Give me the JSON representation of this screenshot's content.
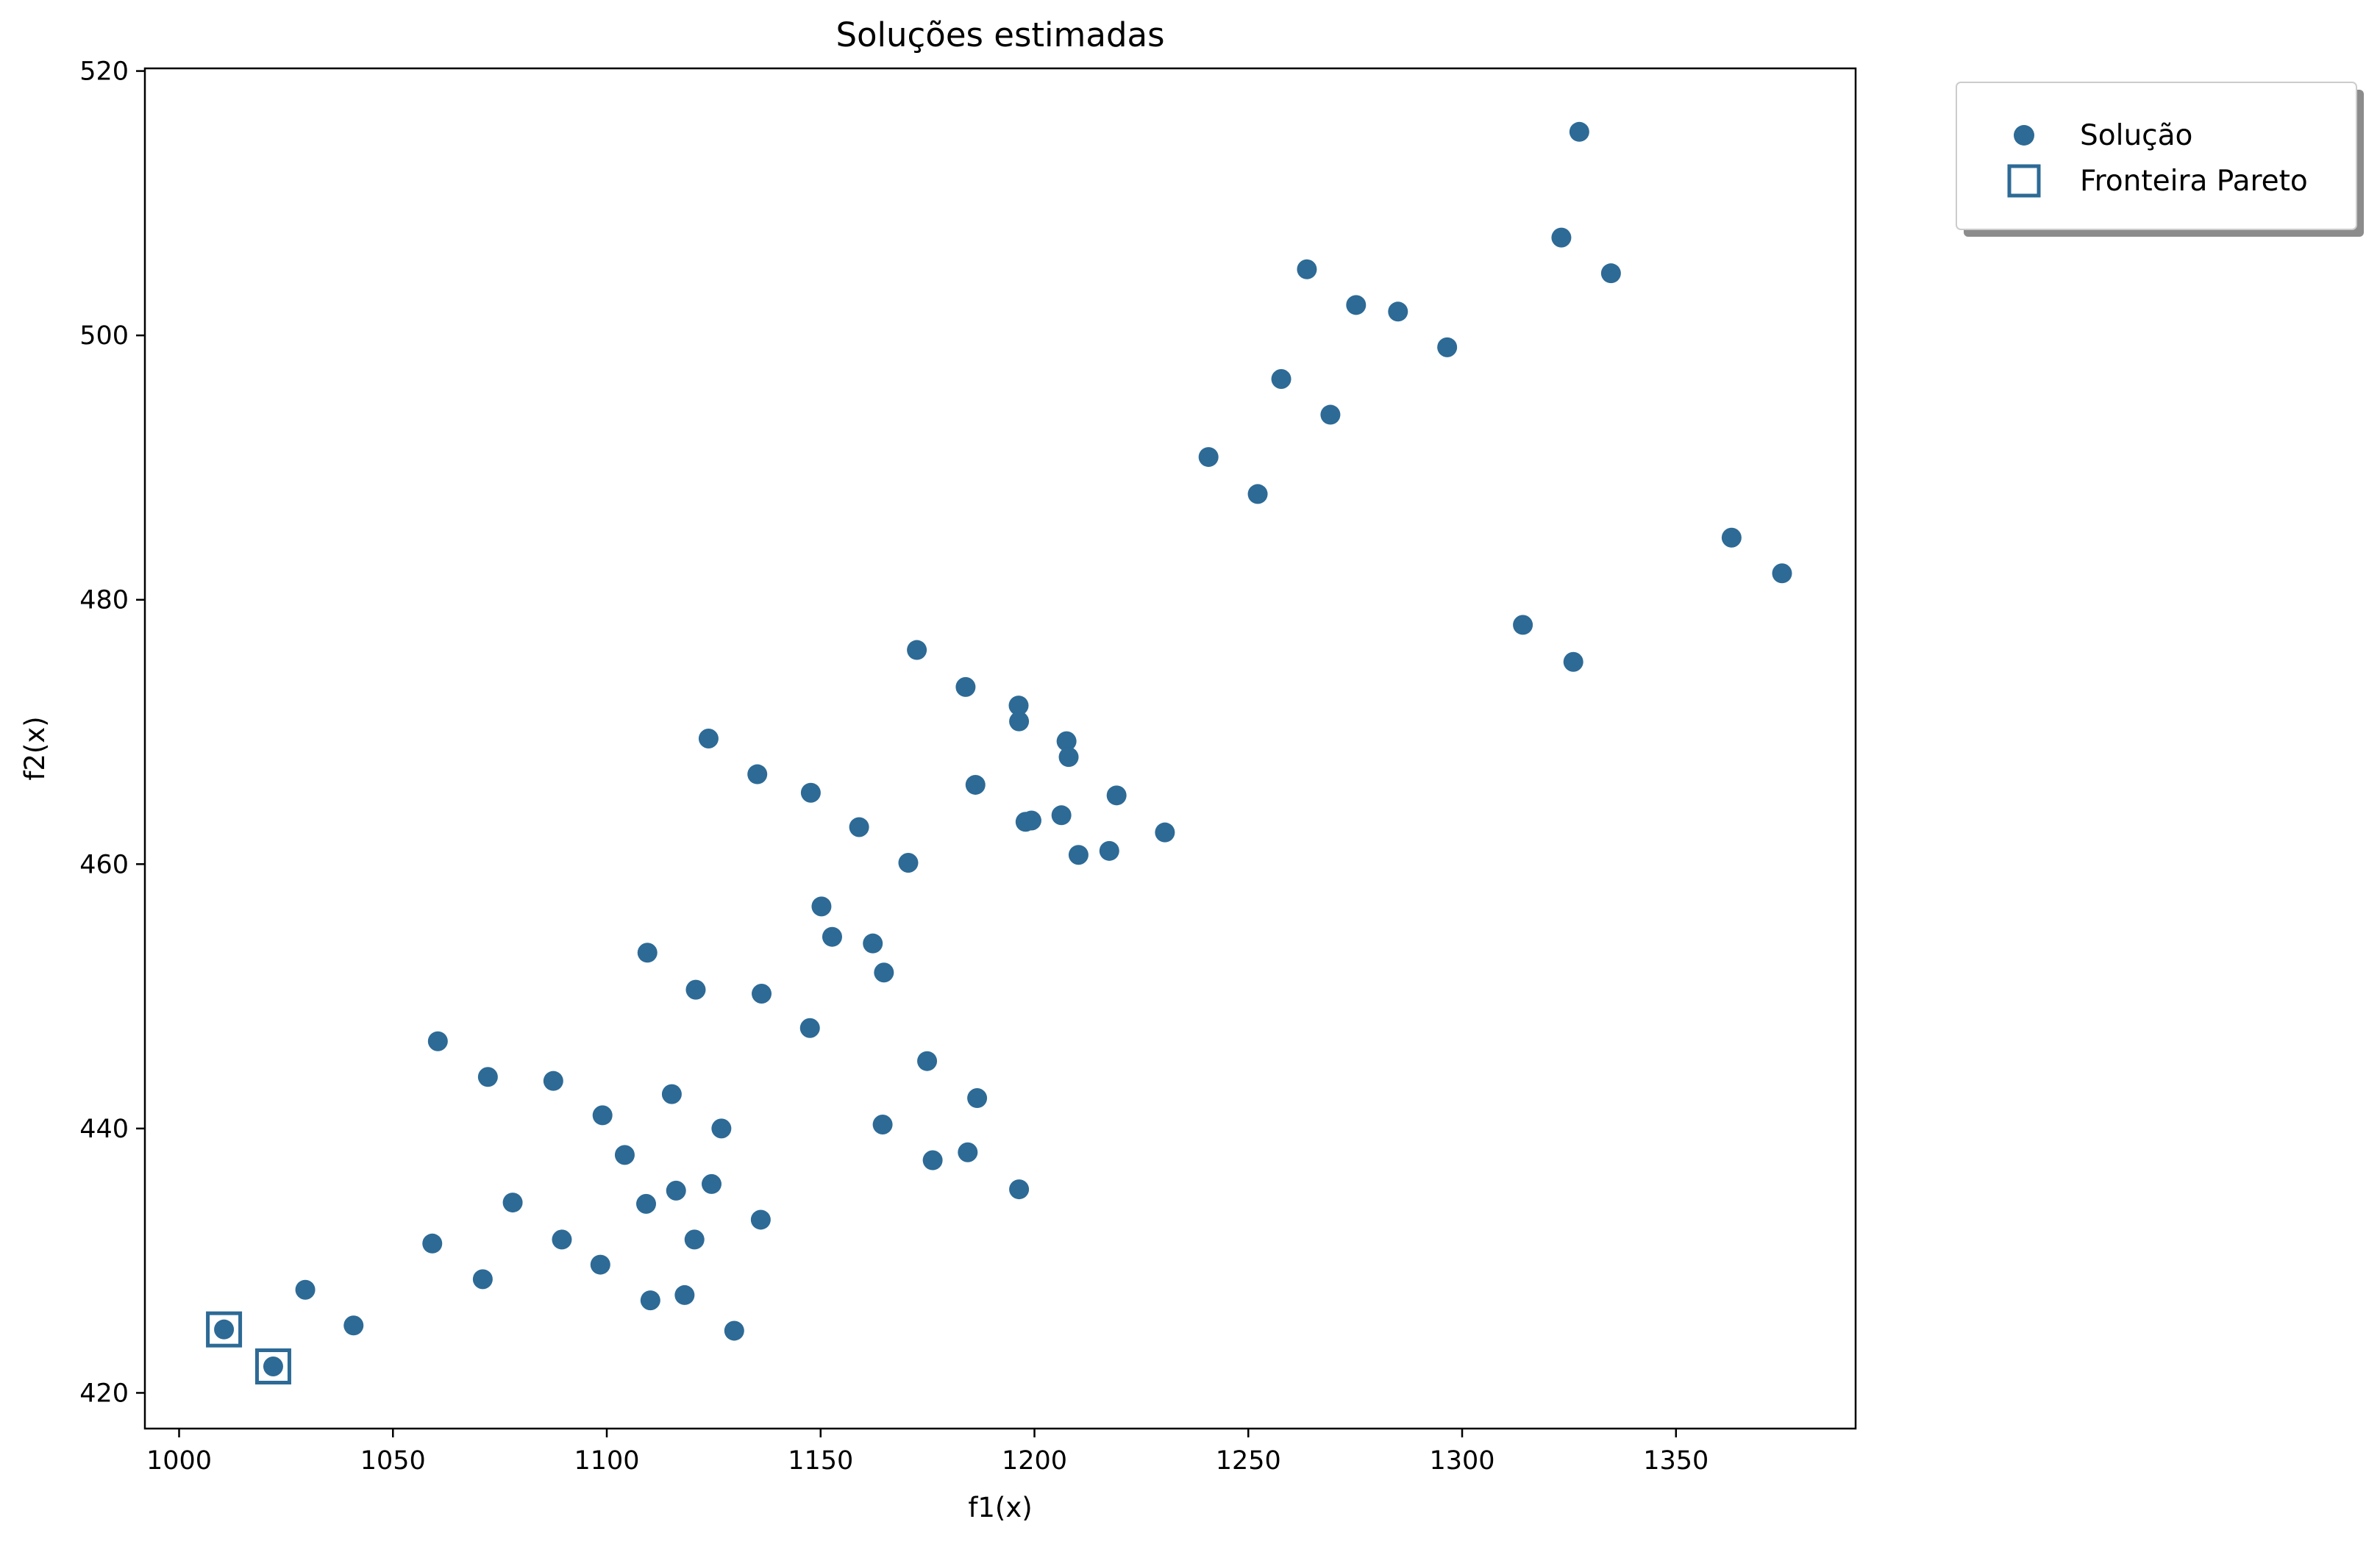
{
  "chart_data": {
    "type": "scatter",
    "title": "Soluções estimadas",
    "xlabel": "f1(x)",
    "ylabel": "f2(x)",
    "xlim": [
      992,
      1392
    ],
    "ylim": [
      417.3,
      520.2
    ],
    "xticks": [
      1000,
      1050,
      1100,
      1150,
      1200,
      1250,
      1300,
      1350
    ],
    "yticks": [
      420,
      440,
      460,
      480,
      500,
      520
    ],
    "grid": false,
    "legend_position": "outside-top-right",
    "colors": {
      "point": "#2d6a96",
      "pareto": "#2d6a96"
    },
    "series": [
      {
        "name": "Solução",
        "marker": "circle",
        "points": [
          [
            1010.5,
            424.8
          ],
          [
            1022.0,
            422.0
          ],
          [
            1029.5,
            427.8
          ],
          [
            1040.8,
            425.1
          ],
          [
            1059.2,
            431.3
          ],
          [
            1060.5,
            446.6
          ],
          [
            1071.0,
            428.6
          ],
          [
            1072.2,
            443.9
          ],
          [
            1078.0,
            434.4
          ],
          [
            1087.5,
            443.6
          ],
          [
            1089.5,
            431.6
          ],
          [
            1098.5,
            429.7
          ],
          [
            1099.0,
            441.0
          ],
          [
            1104.2,
            438.0
          ],
          [
            1109.2,
            434.3
          ],
          [
            1109.5,
            453.3
          ],
          [
            1110.2,
            427.0
          ],
          [
            1115.2,
            442.6
          ],
          [
            1116.2,
            435.3
          ],
          [
            1118.2,
            427.4
          ],
          [
            1120.5,
            431.6
          ],
          [
            1120.8,
            450.5
          ],
          [
            1123.8,
            469.5
          ],
          [
            1124.5,
            435.8
          ],
          [
            1126.8,
            440.0
          ],
          [
            1129.8,
            424.7
          ],
          [
            1135.2,
            466.8
          ],
          [
            1136.0,
            433.1
          ],
          [
            1136.2,
            450.2
          ],
          [
            1147.5,
            447.6
          ],
          [
            1147.7,
            465.4
          ],
          [
            1150.2,
            456.8
          ],
          [
            1152.7,
            454.5
          ],
          [
            1159.0,
            462.8
          ],
          [
            1162.2,
            454.0
          ],
          [
            1164.5,
            440.3
          ],
          [
            1164.8,
            451.8
          ],
          [
            1170.5,
            460.1
          ],
          [
            1172.5,
            476.2
          ],
          [
            1174.9,
            445.1
          ],
          [
            1176.2,
            437.6
          ],
          [
            1183.9,
            473.4
          ],
          [
            1184.4,
            438.2
          ],
          [
            1186.2,
            466.0
          ],
          [
            1186.6,
            442.3
          ],
          [
            1196.3,
            472.0
          ],
          [
            1196.4,
            470.8
          ],
          [
            1196.4,
            435.4
          ],
          [
            1197.9,
            463.2
          ],
          [
            1199.3,
            463.3
          ],
          [
            1206.3,
            463.7
          ],
          [
            1207.5,
            469.3
          ],
          [
            1208.0,
            468.1
          ],
          [
            1210.3,
            460.7
          ],
          [
            1217.5,
            461.0
          ],
          [
            1219.2,
            465.2
          ],
          [
            1230.5,
            462.4
          ],
          [
            1240.7,
            490.8
          ],
          [
            1252.2,
            488.0
          ],
          [
            1257.7,
            496.7
          ],
          [
            1263.7,
            505.0
          ],
          [
            1269.2,
            494.0
          ],
          [
            1275.2,
            502.3
          ],
          [
            1285.0,
            501.8
          ],
          [
            1296.5,
            499.1
          ],
          [
            1314.2,
            478.1
          ],
          [
            1323.2,
            507.4
          ],
          [
            1326.0,
            475.3
          ],
          [
            1327.4,
            515.4
          ],
          [
            1334.8,
            504.7
          ],
          [
            1363.0,
            484.7
          ],
          [
            1374.8,
            482.0
          ]
        ]
      },
      {
        "name": "Fronteira Pareto",
        "marker": "square-open",
        "points": [
          [
            1010.5,
            424.8
          ],
          [
            1022.0,
            422.0
          ]
        ]
      }
    ]
  }
}
